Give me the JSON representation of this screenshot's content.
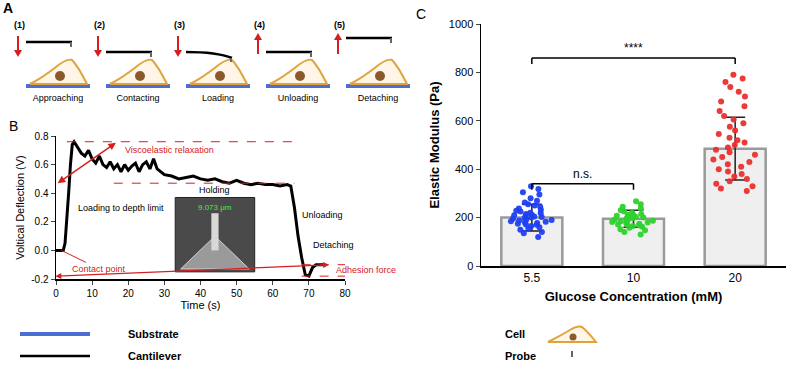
{
  "diagram": {
    "panel_label": "A",
    "steps": [
      {
        "number": "(1)",
        "label": "Approaching",
        "arrow": "down"
      },
      {
        "number": "(2)",
        "label": "Contacting",
        "arrow": "down"
      },
      {
        "number": "(3)",
        "label": "Loading",
        "arrow": "down"
      },
      {
        "number": "(4)",
        "label": "Unloading",
        "arrow": "up"
      },
      {
        "number": "(5)",
        "label": "Detaching",
        "arrow": "up"
      }
    ],
    "legend": [
      {
        "label": "Substrate"
      },
      {
        "label": "Cantilever"
      },
      {
        "label": "Cell"
      },
      {
        "label": "Probe"
      }
    ]
  },
  "chart_data": [
    {
      "type": "line",
      "panel_label": "B",
      "x_label": "Time (s)",
      "y_label": "Voltical Deflection (V)",
      "x": [
        0,
        1,
        2,
        2.5,
        3,
        3.5,
        4,
        4.5,
        5,
        6,
        7,
        8,
        9,
        10,
        11,
        12,
        13,
        14,
        15,
        16,
        17,
        18,
        19,
        20,
        21,
        22,
        23,
        24,
        25,
        26,
        27,
        28,
        29,
        30,
        32,
        34,
        36,
        38,
        40,
        42,
        44,
        46,
        48,
        50,
        52,
        54,
        56,
        58,
        60,
        62,
        64,
        65,
        66,
        67,
        68,
        69,
        70,
        71,
        72,
        73,
        74
      ],
      "values": [
        0,
        0,
        0,
        0.05,
        0.2,
        0.4,
        0.6,
        0.74,
        0.76,
        0.72,
        0.68,
        0.66,
        0.7,
        0.64,
        0.61,
        0.66,
        0.6,
        0.58,
        0.62,
        0.57,
        0.6,
        0.55,
        0.6,
        0.56,
        0.59,
        0.61,
        0.55,
        0.6,
        0.62,
        0.57,
        0.64,
        0.57,
        0.55,
        0.53,
        0.52,
        0.5,
        0.51,
        0.52,
        0.5,
        0.49,
        0.5,
        0.48,
        0.47,
        0.49,
        0.47,
        0.46,
        0.47,
        0.46,
        0.46,
        0.45,
        0.46,
        0.45,
        0.3,
        0.1,
        -0.05,
        -0.17,
        -0.18,
        -0.12,
        -0.1,
        -0.1,
        -0.1
      ],
      "color": "#000000",
      "xlim": [
        0,
        80
      ],
      "xticks": [
        0,
        10,
        20,
        30,
        40,
        50,
        60,
        70,
        80
      ],
      "ylim": [
        -0.2,
        0.8
      ],
      "yticks": [
        -0.2,
        {
          "value": 0,
          "label": "0.0"
        },
        0.2,
        0.4,
        0.6,
        0.8
      ],
      "grid": false,
      "viscoelastic_relaxation": {
        "from": 0.76,
        "to": 0.47
      },
      "adhesion_force": {
        "from": -0.1,
        "to": -0.18
      },
      "annotations": [
        "Viscoelastic relaxation",
        "Loading to depth limit",
        "Holding",
        "Unloading",
        "Detaching",
        "Contact point",
        "Adhesion force"
      ],
      "inset_label": "9.073 μm"
    },
    {
      "type": "bar",
      "panel_label": "C",
      "x_label": "Glucose Concentration (mM)",
      "y_label": "Elastic Modulus (Pa)",
      "categories": [
        "5.5",
        "10",
        "20"
      ],
      "values": [
        200,
        195,
        485
      ],
      "errors": [
        55,
        35,
        130
      ],
      "color": "#efefef",
      "ylim": [
        0,
        1000
      ],
      "yticks": [
        0,
        200,
        400,
        600,
        800,
        1000
      ],
      "grid": false,
      "points": [
        [
          120,
          135,
          140,
          150,
          155,
          160,
          165,
          170,
          172,
          175,
          178,
          180,
          183,
          185,
          188,
          190,
          192,
          195,
          198,
          200,
          202,
          205,
          208,
          210,
          212,
          215,
          218,
          220,
          225,
          228,
          232,
          238,
          245,
          250,
          255,
          262,
          270,
          280,
          295,
          305,
          318,
          330
        ],
        [
          130,
          140,
          148,
          152,
          158,
          162,
          165,
          168,
          170,
          172,
          175,
          178,
          180,
          182,
          185,
          187,
          190,
          192,
          195,
          197,
          200,
          202,
          205,
          208,
          210,
          212,
          215,
          220,
          225,
          230,
          238,
          245,
          255,
          268
        ],
        [
          310,
          320,
          330,
          340,
          350,
          360,
          370,
          380,
          390,
          400,
          410,
          420,
          430,
          440,
          450,
          460,
          470,
          480,
          490,
          500,
          510,
          520,
          530,
          545,
          560,
          575,
          590,
          605,
          620,
          640,
          660,
          680,
          700,
          720,
          740,
          760,
          775,
          790
        ]
      ],
      "point_colors": [
        "#1f3ff2",
        "#2ed12e",
        "#ea2f2f"
      ],
      "significance": [
        {
          "from": "5.5",
          "to": "10",
          "label": "n.s."
        },
        {
          "from": "5.5",
          "to": "20",
          "label": "****"
        }
      ]
    }
  ]
}
